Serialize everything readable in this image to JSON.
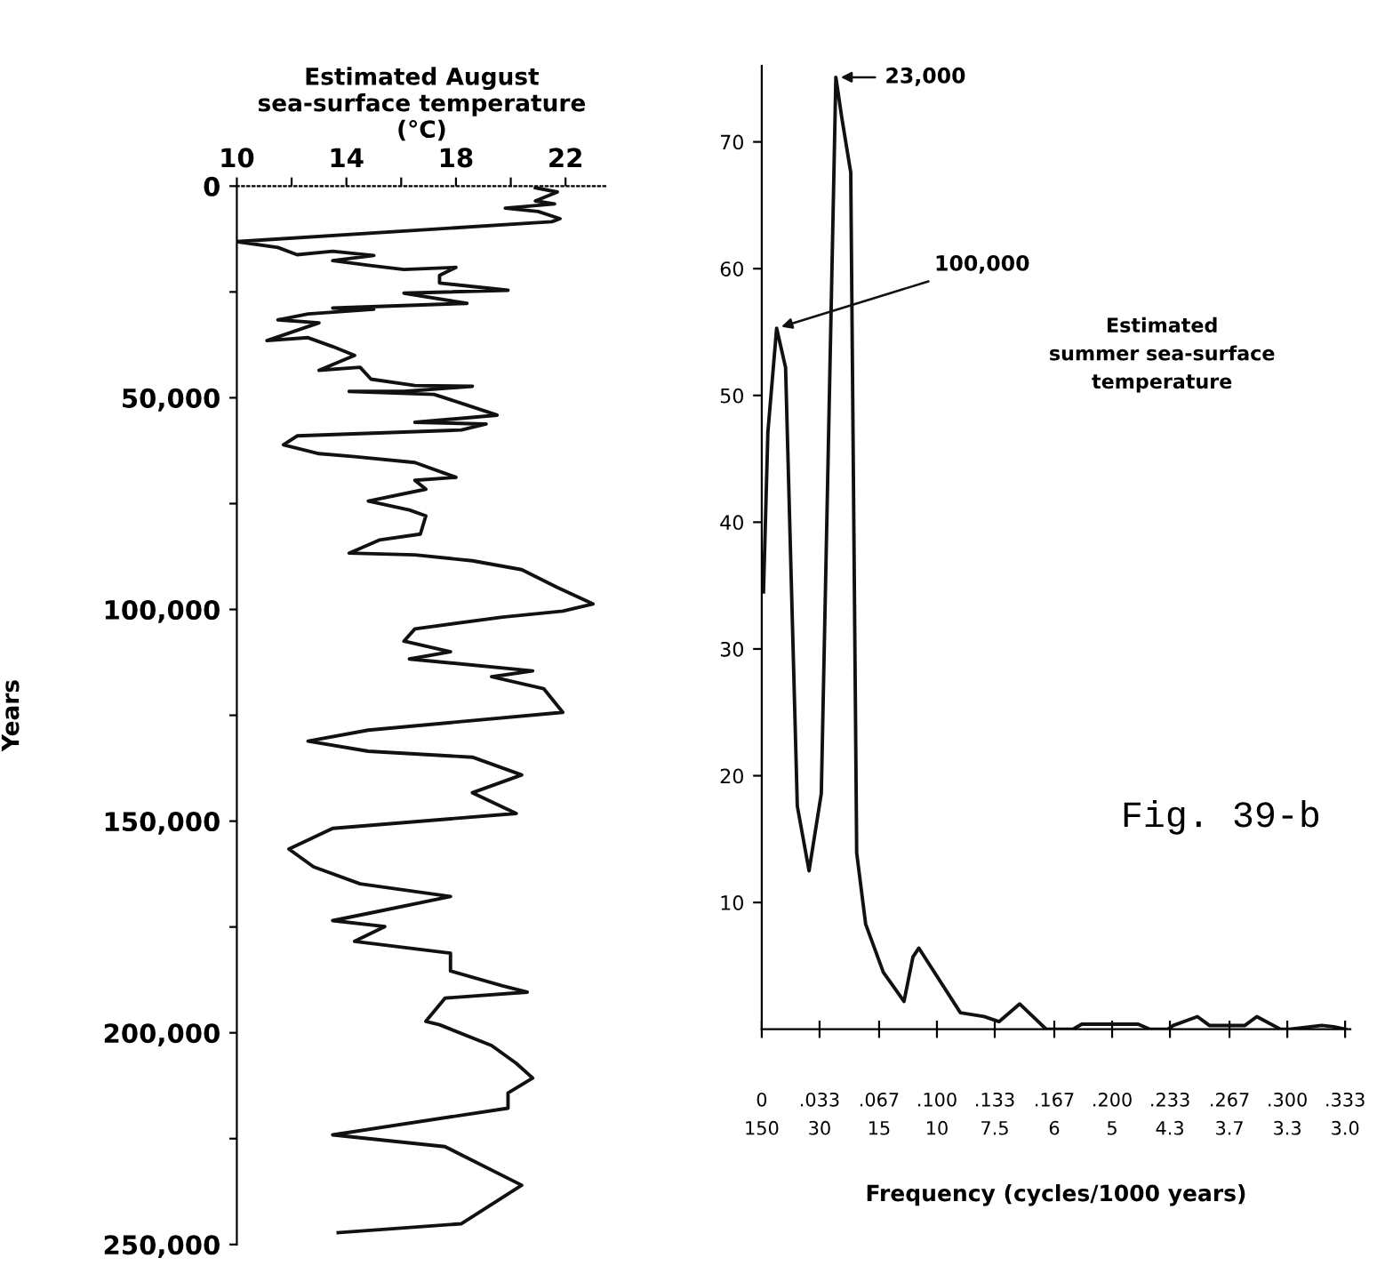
{
  "chart_data": [
    {
      "type": "line",
      "xlabel": "Estimated August\nsea-surface temperature\n(°C)",
      "ylabel": "Years",
      "color": "#111111",
      "grid": false,
      "tick_labels": "xy",
      "x": [
        20.9,
        21.7,
        20.9,
        21.6,
        19.8,
        21.0,
        21.8,
        21.5,
        10.0,
        11.5,
        12.2,
        13.5,
        15.0,
        13.5,
        14.8,
        16.1,
        18.0,
        17.4,
        17.4,
        19.9,
        16.1,
        18.4,
        13.5,
        15.0,
        12.6,
        11.5,
        13.0,
        11.1,
        12.6,
        13.5,
        14.3,
        13.0,
        14.5,
        14.9,
        16.5,
        18.6,
        16.1,
        14.1,
        17.2,
        18.2,
        19.5,
        16.5,
        19.1,
        18.2,
        12.2,
        11.7,
        13.0,
        14.3,
        16.5,
        18.0,
        16.5,
        16.9,
        14.8,
        16.3,
        16.9,
        16.7,
        15.2,
        14.1,
        16.5,
        18.6,
        20.4,
        21.7,
        23.0,
        21.9,
        19.7,
        16.5,
        16.1,
        17.8,
        16.3,
        20.8,
        19.3,
        21.2,
        21.9,
        14.8,
        12.6,
        14.8,
        18.6,
        20.4,
        18.6,
        20.2,
        13.5,
        11.9,
        12.8,
        14.5,
        17.8,
        15.1,
        13.5,
        15.4,
        14.3,
        17.8,
        17.8,
        19.7,
        20.6,
        17.6,
        16.9,
        17.4,
        19.3,
        20.2,
        20.8,
        19.9,
        19.9,
        13.5,
        17.6,
        20.4,
        18.2,
        13.7
      ],
      "values": [
        400,
        1400,
        3500,
        4200,
        5200,
        6000,
        7700,
        8400,
        13100,
        14500,
        16200,
        15400,
        16400,
        17600,
        18700,
        19700,
        19200,
        21100,
        22900,
        24600,
        25300,
        27700,
        28800,
        29100,
        30200,
        31600,
        32300,
        36500,
        35800,
        37900,
        40000,
        43500,
        42800,
        45600,
        47100,
        47300,
        48500,
        48500,
        49200,
        51300,
        54100,
        55800,
        56200,
        57600,
        59000,
        61100,
        63200,
        63900,
        65300,
        68800,
        69500,
        71600,
        74400,
        76500,
        77900,
        82200,
        83600,
        86700,
        87100,
        88500,
        90600,
        94800,
        98700,
        100400,
        101800,
        104600,
        107500,
        110000,
        111700,
        114500,
        115900,
        118700,
        124300,
        128500,
        131100,
        133500,
        134900,
        139100,
        143300,
        148200,
        151700,
        156600,
        160800,
        164800,
        167800,
        171400,
        173500,
        174900,
        178400,
        181200,
        185400,
        188900,
        190400,
        191800,
        197300,
        198100,
        203000,
        207200,
        210700,
        214200,
        217800,
        224100,
        226900,
        236000,
        245100,
        247200
      ],
      "xlim": [
        10,
        23.5
      ],
      "xticks": [
        10,
        {
          "value": 12,
          "label": null
        },
        14,
        {
          "value": 16,
          "label": null
        },
        18,
        {
          "value": 20,
          "label": null
        },
        22
      ],
      "ylim": [
        250000,
        0
      ],
      "yticks": [
        {
          "value": 0,
          "label": "0"
        },
        {
          "value": 25000,
          "label": null
        },
        {
          "value": 50000,
          "label": "50,000"
        },
        {
          "value": 75000,
          "label": null
        },
        {
          "value": 100000,
          "label": "100,000"
        },
        {
          "value": 125000,
          "label": null
        },
        {
          "value": 150000,
          "label": "150,000"
        },
        {
          "value": 175000,
          "label": null
        },
        {
          "value": 200000,
          "label": "200,000"
        },
        {
          "value": 225000,
          "label": null
        },
        {
          "value": 250000,
          "label": "250,000"
        }
      ]
    },
    {
      "type": "line",
      "xlabel": "Frequency (cycles/1000 years)",
      "color": "#111111",
      "grid": false,
      "x": [
        0.001,
        0.0035,
        0.0085,
        0.0136,
        0.0203,
        0.027,
        0.034,
        0.0423,
        0.0457,
        0.0508,
        0.0542,
        0.0593,
        0.0694,
        0.0812,
        0.0863,
        0.0897,
        0.1134,
        0.1269,
        0.1354,
        0.1472,
        0.1624,
        0.1776,
        0.1827,
        0.2149,
        0.2216,
        0.2318,
        0.235,
        0.2487,
        0.2555,
        0.2758,
        0.2826,
        0.2961,
        0.3013,
        0.3197,
        0.3265,
        0.3333
      ],
      "values": [
        34.5,
        47.1,
        55.3,
        52.2,
        17.6,
        12.5,
        18.6,
        75.1,
        71.9,
        67.6,
        13.9,
        8.3,
        4.5,
        2.2,
        5.7,
        6.4,
        1.3,
        1.0,
        0.6,
        2.0,
        0,
        0,
        0.4,
        0.4,
        0,
        0,
        0.3,
        1.0,
        0.3,
        0.3,
        1.0,
        0,
        0,
        0.3,
        0.2,
        0
      ],
      "xlim": [
        0,
        0.336
      ],
      "xticks": [
        0,
        {
          "value": 0.033,
          "label": ".033"
        },
        {
          "value": 0.067,
          "label": ".067"
        },
        {
          "value": 0.1,
          "label": ".100"
        },
        {
          "value": 0.133,
          "label": ".133"
        },
        {
          "value": 0.167,
          "label": ".167"
        },
        {
          "value": 0.2,
          "label": ".200"
        },
        {
          "value": 0.233,
          "label": ".233"
        },
        {
          "value": 0.267,
          "label": ".267"
        },
        {
          "value": 0.3,
          "label": ".300"
        },
        {
          "value": 0.333,
          "label": ".333"
        }
      ],
      "ylim": [
        0,
        76
      ],
      "yticks": [
        10,
        20,
        30,
        40,
        50,
        60,
        70
      ],
      "annotations": [
        {
          "text": "23,000",
          "x": 0.0423,
          "y": 75.1
        },
        {
          "text": "100,000",
          "x": 0.0085,
          "y": 55.3
        },
        "Estimated\nsummer sea-surface\ntemperature",
        "Fig. 39-b",
        "150 30 15 10 7.5 6 5 4.3 3.7 3.3 3.0"
      ]
    }
  ]
}
